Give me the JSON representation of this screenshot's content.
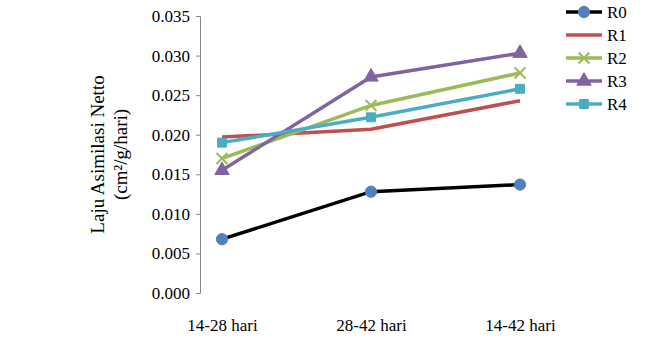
{
  "chart_data": {
    "type": "line",
    "y_label": [
      "Laju Asimilasi Netto",
      "(cm²/g/hari)"
    ],
    "categories": [
      "14-28 hari",
      "28-42 hari",
      "14-42 hari"
    ],
    "series": [
      {
        "name": "R0",
        "color": "#000000",
        "marker": "circle",
        "values": [
          0.0068,
          0.0128,
          0.0137
        ]
      },
      {
        "name": "R1",
        "color": "#c0504d",
        "marker": "none",
        "values": [
          0.0197,
          0.0207,
          0.0243
        ]
      },
      {
        "name": "R2",
        "color": "#9bbb59",
        "marker": "x",
        "values": [
          0.017,
          0.0237,
          0.0278
        ]
      },
      {
        "name": "R3",
        "color": "#8064a2",
        "marker": "triangle",
        "values": [
          0.0155,
          0.0273,
          0.0303
        ]
      },
      {
        "name": "R4",
        "color": "#4bacc6",
        "marker": "square",
        "values": [
          0.019,
          0.0222,
          0.0258
        ]
      }
    ],
    "ylim": [
      0,
      0.035
    ],
    "yticks": [
      {
        "value": 0,
        "label": "0.000"
      },
      0.005,
      {
        "value": 0.01,
        "label": "0.010"
      },
      0.015,
      {
        "value": 0.02,
        "label": "0.020"
      },
      0.025,
      {
        "value": 0.03,
        "label": "0.030"
      },
      0.035
    ],
    "grid": false,
    "legend": "right"
  }
}
